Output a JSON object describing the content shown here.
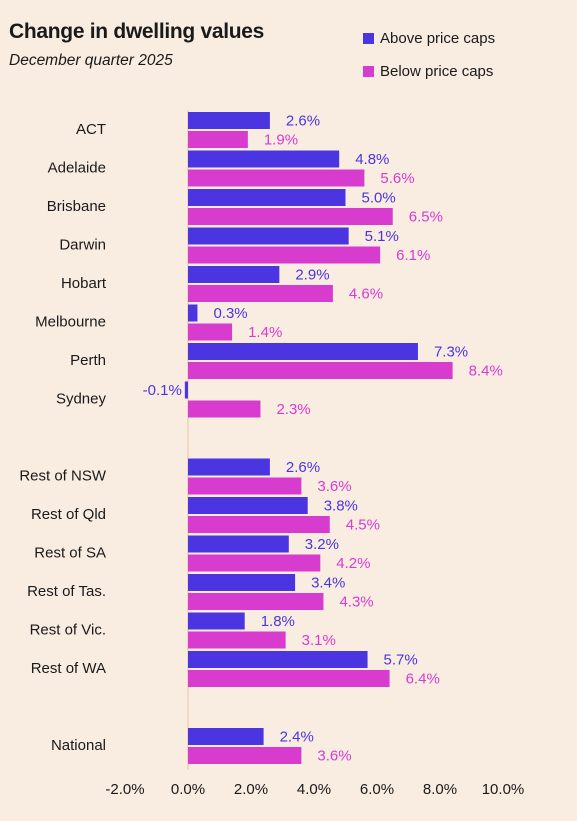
{
  "title": "Change in dwelling values",
  "subtitle": "December quarter 2025",
  "chart_data": {
    "type": "bar",
    "orientation": "horizontal",
    "title": "Change in dwelling values",
    "subtitle": "December quarter 2025",
    "categories": [
      "ACT",
      "Adelaide",
      "Brisbane",
      "Darwin",
      "Hobart",
      "Melbourne",
      "Perth",
      "Sydney",
      "Rest of NSW",
      "Rest of Qld",
      "Rest of SA",
      "Rest of Tas.",
      "Rest of Vic.",
      "Rest of WA",
      "National"
    ],
    "groups": [
      [
        0,
        8
      ],
      [
        8,
        14
      ],
      [
        14,
        15
      ]
    ],
    "series": [
      {
        "name": "Above price caps",
        "color": "#4b35e0",
        "values": [
          2.6,
          4.8,
          5.0,
          5.1,
          2.9,
          0.3,
          7.3,
          -0.1,
          2.6,
          3.8,
          3.2,
          3.4,
          1.8,
          5.7,
          2.4
        ],
        "labels": [
          "2.6%",
          "4.8%",
          "5.0%",
          "5.1%",
          "2.9%",
          "0.3%",
          "7.3%",
          "-0.1%",
          "2.6%",
          "3.8%",
          "3.2%",
          "3.4%",
          "1.8%",
          "5.7%",
          "2.4%"
        ]
      },
      {
        "name": "Below price caps",
        "color": "#d73ccf",
        "values": [
          1.9,
          5.6,
          6.5,
          6.1,
          4.6,
          1.4,
          8.4,
          2.3,
          3.6,
          4.5,
          4.2,
          4.3,
          3.1,
          6.4,
          3.6
        ],
        "labels": [
          "1.9%",
          "5.6%",
          "6.5%",
          "6.1%",
          "4.6%",
          "1.4%",
          "8.4%",
          "2.3%",
          "3.6%",
          "4.5%",
          "4.2%",
          "4.3%",
          "3.1%",
          "6.4%",
          "3.6%"
        ]
      }
    ],
    "xlim": [
      -2,
      10
    ],
    "xticks": [
      -2,
      0,
      2,
      4,
      6,
      8,
      10
    ],
    "xtick_labels": [
      "-2.0%",
      "0.0%",
      "2.0%",
      "4.0%",
      "6.0%",
      "8.0%",
      "10.0%"
    ],
    "xlabel": "",
    "ylabel": "",
    "grid": false,
    "legend_position": "top-right"
  }
}
